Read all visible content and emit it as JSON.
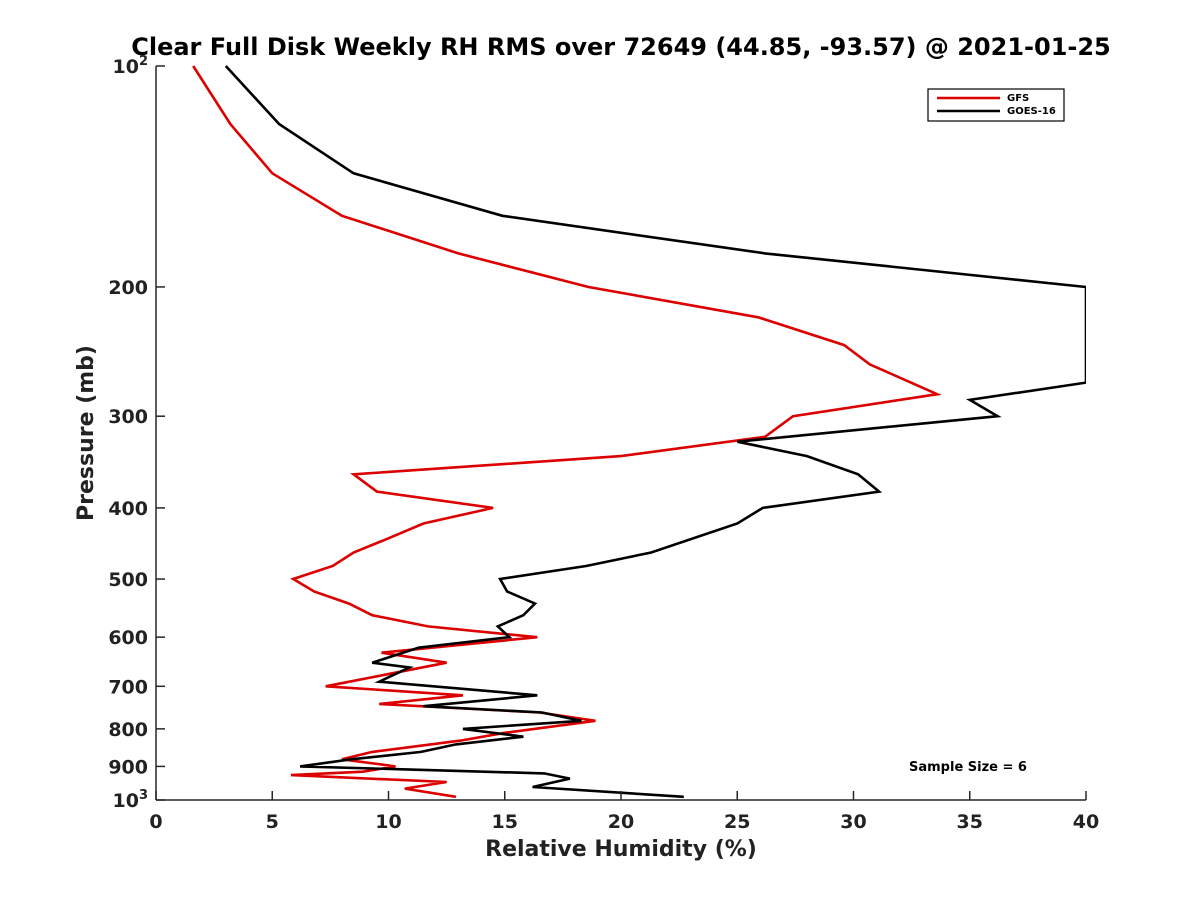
{
  "chart_data": {
    "type": "line",
    "title": "Clear Full Disk Weekly RH RMS over 72649 (44.85, -93.57) @ 2021-01-25",
    "xlabel": "Relative Humidity (%)",
    "ylabel": "Pressure (mb)",
    "xlim": [
      0,
      40
    ],
    "ylim": [
      100,
      1000
    ],
    "y_scale": "log",
    "y_reversed": true,
    "grid": false,
    "legend_position": "top-right",
    "x_ticks": [
      "0",
      "5",
      "10",
      "15",
      "20",
      "25",
      "30",
      "35",
      "40"
    ],
    "y_ticks": [
      {
        "value": 100,
        "label": "10",
        "sup": "2"
      },
      {
        "value": 200,
        "label": "200",
        "sup": ""
      },
      {
        "value": 300,
        "label": "300",
        "sup": ""
      },
      {
        "value": 400,
        "label": "400",
        "sup": ""
      },
      {
        "value": 500,
        "label": "500",
        "sup": ""
      },
      {
        "value": 600,
        "label": "600",
        "sup": ""
      },
      {
        "value": 700,
        "label": "700",
        "sup": ""
      },
      {
        "value": 800,
        "label": "800",
        "sup": ""
      },
      {
        "value": 900,
        "label": "900",
        "sup": ""
      },
      {
        "value": 1000,
        "label": "10",
        "sup": "3"
      }
    ],
    "annotation": "Sample Size = 6",
    "series": [
      {
        "name": "GFS",
        "color": "#dd0000",
        "points": [
          [
            1.6,
            100
          ],
          [
            3.2,
            120
          ],
          [
            5.0,
            140
          ],
          [
            8.0,
            160
          ],
          [
            13.0,
            180
          ],
          [
            18.6,
            200
          ],
          [
            25.9,
            220
          ],
          [
            29.6,
            240
          ],
          [
            30.7,
            255
          ],
          [
            33.6,
            280
          ],
          [
            27.4,
            300
          ],
          [
            26.2,
            320
          ],
          [
            20.0,
            340
          ],
          [
            8.5,
            360
          ],
          [
            9.5,
            380
          ],
          [
            14.5,
            400
          ],
          [
            11.5,
            420
          ],
          [
            10.0,
            440
          ],
          [
            8.5,
            460
          ],
          [
            7.6,
            480
          ],
          [
            5.9,
            500
          ],
          [
            6.8,
            520
          ],
          [
            8.3,
            540
          ],
          [
            9.3,
            560
          ],
          [
            11.7,
            580
          ],
          [
            16.4,
            600
          ],
          [
            9.7,
            630
          ],
          [
            12.5,
            650
          ],
          [
            7.3,
            700
          ],
          [
            13.2,
            720
          ],
          [
            9.6,
            740
          ],
          [
            16.5,
            760
          ],
          [
            18.9,
            780
          ],
          [
            15.0,
            810
          ],
          [
            13.1,
            830
          ],
          [
            9.3,
            860
          ],
          [
            8.0,
            880
          ],
          [
            10.3,
            900
          ],
          [
            8.9,
            915
          ],
          [
            5.8,
            925
          ],
          [
            12.5,
            945
          ],
          [
            10.7,
            965
          ],
          [
            12.9,
            990
          ]
        ]
      },
      {
        "name": "GOES-16",
        "color": "#000000",
        "points": [
          [
            3.0,
            100
          ],
          [
            5.3,
            120
          ],
          [
            8.5,
            140
          ],
          [
            14.9,
            160
          ],
          [
            26.2,
            180
          ],
          [
            40.0,
            200
          ],
          [
            40.0,
            270
          ],
          [
            35.0,
            285
          ],
          [
            36.2,
            300
          ],
          [
            25.0,
            325
          ],
          [
            28.0,
            340
          ],
          [
            30.2,
            360
          ],
          [
            31.1,
            380
          ],
          [
            26.1,
            400
          ],
          [
            25.0,
            420
          ],
          [
            21.3,
            460
          ],
          [
            18.5,
            480
          ],
          [
            14.8,
            500
          ],
          [
            15.1,
            520
          ],
          [
            16.3,
            540
          ],
          [
            15.8,
            560
          ],
          [
            14.7,
            580
          ],
          [
            15.2,
            600
          ],
          [
            11.3,
            620
          ],
          [
            9.3,
            650
          ],
          [
            10.9,
            660
          ],
          [
            9.6,
            690
          ],
          [
            16.4,
            720
          ],
          [
            11.5,
            745
          ],
          [
            16.6,
            760
          ],
          [
            18.3,
            780
          ],
          [
            13.2,
            800
          ],
          [
            15.8,
            820
          ],
          [
            12.9,
            840
          ],
          [
            11.4,
            860
          ],
          [
            8.4,
            880
          ],
          [
            6.2,
            900
          ],
          [
            16.7,
            920
          ],
          [
            17.8,
            935
          ],
          [
            16.2,
            960
          ],
          [
            22.7,
            990
          ]
        ]
      }
    ]
  }
}
